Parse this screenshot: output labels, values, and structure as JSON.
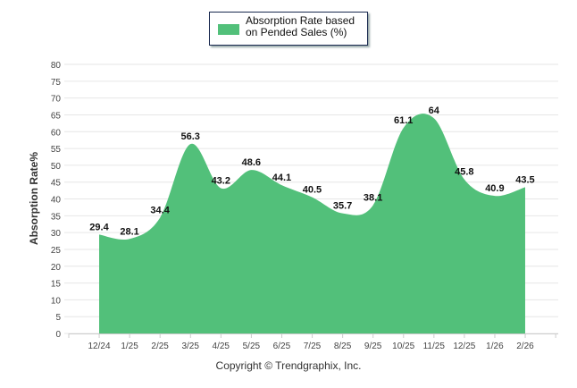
{
  "chart_data": {
    "type": "area",
    "title": "",
    "xlabel": "",
    "ylabel": "Absorption Rate%",
    "ylim": [
      0,
      80
    ],
    "yticks": [
      0,
      5,
      10,
      15,
      20,
      25,
      30,
      35,
      40,
      45,
      50,
      55,
      60,
      65,
      70,
      75,
      80
    ],
    "categories": [
      "12/24",
      "1/25",
      "2/25",
      "3/25",
      "4/25",
      "5/25",
      "6/25",
      "7/25",
      "8/25",
      "9/25",
      "10/25",
      "11/25",
      "12/25",
      "1/26",
      "2/26"
    ],
    "series": [
      {
        "name": "Absorption Rate based on Pended Sales (%)",
        "values": [
          29.4,
          28.1,
          34.4,
          56.3,
          43.2,
          48.6,
          44.1,
          40.5,
          35.7,
          38.1,
          61.1,
          64,
          45.8,
          40.9,
          43.5
        ]
      }
    ],
    "legend_placement": "top-center",
    "grid": true,
    "color": "#52c07a"
  },
  "footer": {
    "copyright": "Copyright © Trendgraphix, Inc."
  }
}
